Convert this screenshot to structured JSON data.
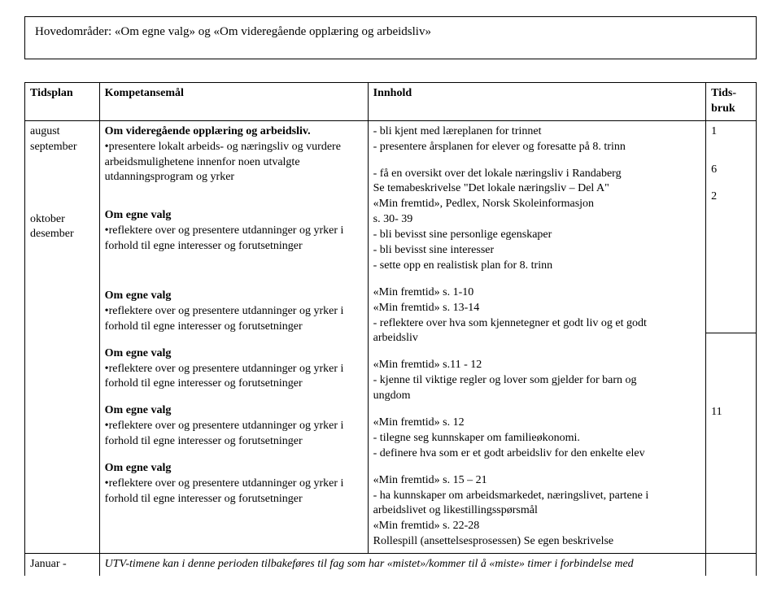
{
  "header": {
    "title": "Hovedområder: «Om egne valg» og «Om videregående opplæring og arbeidsliv»"
  },
  "table": {
    "headers": {
      "c1": "Tidsplan",
      "c2": "Kompetansemål",
      "c3": "Innhold",
      "c4": "Tids-bruk"
    },
    "row1": {
      "tidsplan": "august september",
      "komp_h1": "Om videregående opplæring og arbeidsliv.",
      "komp_b1": "•presentere lokalt arbeids- og næringsliv og vurdere arbeidsmulighetene innenfor noen utvalgte utdanningsprogram og yrker",
      "inn_l1": "- bli kjent med læreplanen for trinnet",
      "inn_l2": "- presentere årsplanen for elever og foresatte på 8. trinn",
      "inn_l3": "- få en oversikt over det lokale næringsliv i Randaberg",
      "inn_l4": "Se temabeskrivelse \"Det lokale næringsliv – Del A\"",
      "inn_l5": "«Min fremtid», Pedlex, Norsk Skoleinformasjon",
      "inn_l6": "s. 30- 39",
      "tb1": "1",
      "tb2": "6",
      "tb3": "2"
    },
    "row2": {
      "tidsplan": "oktober desember",
      "komp_h": "Om egne valg",
      "komp_b": "•reflektere over og presentere utdanninger og yrker i forhold til egne interesser og forutsetninger",
      "inn_a1": "- bli bevisst sine personlige egenskaper",
      "inn_a2": "- bli bevisst sine interesser",
      "inn_a3": "- sette opp en realistisk plan for 8. trinn",
      "inn_b1": "«Min fremtid» s. 1-10",
      "inn_b2": "«Min fremtid» s. 13-14",
      "inn_c1": "- reflektere over hva som kjennetegner et godt liv og et godt",
      "inn_c2": "  arbeidsliv",
      "inn_c3": "«Min fremtid» s.11 - 12",
      "inn_d1": "- kjenne til viktige regler og lover som gjelder for barn og",
      "inn_d2": "  ungdom",
      "inn_d3": "«Min fremtid» s. 12",
      "inn_e1": "- tilegne seg kunnskaper om familieøkonomi.",
      "inn_e2": "- definere hva som er et godt arbeidsliv for den enkelte elev",
      "inn_e3": "«Min fremtid» s. 15 – 21",
      "inn_f1": "- ha kunnskaper om arbeidsmarkedet, næringslivet,  partene i",
      "inn_f2": "  arbeidslivet og likestillingsspørsmål",
      "inn_f3": "«Min fremtid» s. 22-28",
      "inn_f4": "Rollespill (ansettelsesprosessen) Se egen beskrivelse",
      "tb": "11"
    },
    "row3": {
      "tidsplan": "Januar -",
      "text": "UTV-timene kan i denne perioden tilbakeføres  til fag som har «mistet»/kommer til å «miste» timer i forbindelse med"
    }
  }
}
